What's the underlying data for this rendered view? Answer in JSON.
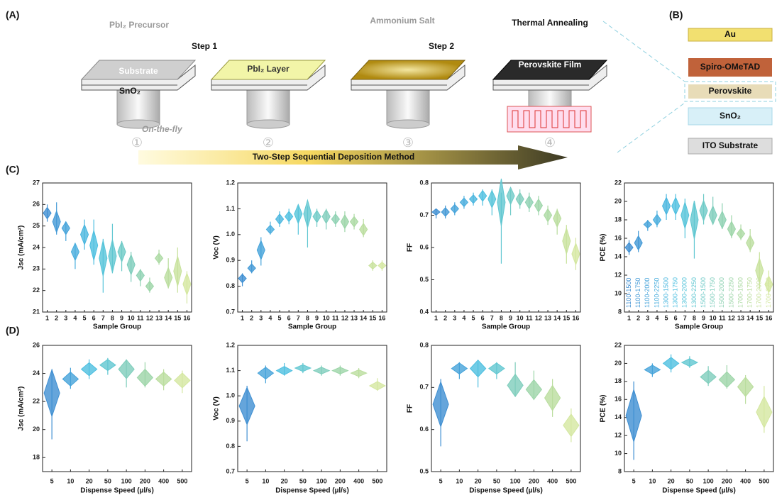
{
  "schematic": {
    "panel_a": "(A)",
    "panel_b": "(B)",
    "precursor": "PbI₂ Precursor",
    "step1": "Step 1",
    "substrate": "Substrate",
    "sno2": "SnO₂",
    "on_the_fly": "On-the-fly",
    "pbi2_layer": "PbI₂ Layer",
    "ammonium": "Ammonium Salt",
    "step2": "Step 2",
    "annealing": "Thermal Annealing",
    "film": "Perovskite Film",
    "method": "Two-Step Sequential Deposition Method",
    "steps": [
      "①",
      "②",
      "③",
      "④"
    ]
  },
  "stack": [
    "Au",
    "Spiro-OMeTAD",
    "Perovskite",
    "SnO₂",
    "ITO Substrate"
  ],
  "panel_c": "(C)",
  "panel_d": "(D)",
  "chart_data": [
    {
      "type": "violin",
      "ylabel": "Jsc (mA/cm²)",
      "xlabel": "Sample Group",
      "categories": [
        "1",
        "2",
        "3",
        "4",
        "5",
        "6",
        "7",
        "8",
        "9",
        "10",
        "11",
        "12",
        "13",
        "14",
        "15",
        "16"
      ],
      "values": [
        25.6,
        25.2,
        24.9,
        23.8,
        24.6,
        24.1,
        23.5,
        23.6,
        23.8,
        23.2,
        22.7,
        22.2,
        23.5,
        22.6,
        22.9,
        22.3
      ],
      "lower": [
        25.2,
        24.6,
        24.3,
        23.0,
        23.9,
        23.2,
        21.9,
        22.8,
        22.9,
        22.4,
        22.2,
        21.9,
        23.2,
        22.1,
        21.9,
        21.4
      ],
      "upper": [
        26.0,
        26.1,
        25.2,
        24.2,
        25.3,
        25.3,
        24.4,
        25.1,
        24.3,
        23.8,
        23.0,
        22.6,
        23.9,
        23.5,
        24.0,
        22.9
      ],
      "colors": [
        "#3f8fd2",
        "#4299d6",
        "#45a3da",
        "#48addd",
        "#4ab6df",
        "#4dbfe0",
        "#55c4da",
        "#60c7d1",
        "#6ecac7",
        "#7ecdbc",
        "#8dd1b2",
        "#9cd5a8",
        "#abd9a2",
        "#badd9e",
        "#c8e29c",
        "#d4e7a0"
      ],
      "ylim": [
        21,
        27
      ],
      "yticks": [
        21,
        22,
        23,
        24,
        25,
        26,
        27
      ]
    },
    {
      "type": "violin",
      "ylabel": "Voc (V)",
      "xlabel": "Sample Group",
      "categories": [
        "1",
        "2",
        "3",
        "4",
        "5",
        "6",
        "7",
        "8",
        "9",
        "10",
        "11",
        "12",
        "13",
        "14",
        "15",
        "16"
      ],
      "values": [
        0.83,
        0.87,
        0.94,
        1.02,
        1.06,
        1.07,
        1.08,
        1.08,
        1.07,
        1.07,
        1.06,
        1.05,
        1.05,
        1.02,
        0.88,
        0.88
      ],
      "lower": [
        0.8,
        0.85,
        0.88,
        1.0,
        1.03,
        1.04,
        1.0,
        0.95,
        1.03,
        1.02,
        1.03,
        1.01,
        1.02,
        0.99,
        0.86,
        0.86
      ],
      "upper": [
        0.85,
        0.9,
        0.99,
        1.05,
        1.09,
        1.1,
        1.11,
        1.11,
        1.1,
        1.1,
        1.09,
        1.09,
        1.08,
        1.06,
        0.9,
        0.9
      ],
      "colors": [
        "#3f8fd2",
        "#4299d6",
        "#45a3da",
        "#48addd",
        "#4ab6df",
        "#4dbfe0",
        "#55c4da",
        "#60c7d1",
        "#6ecac7",
        "#7ecdbc",
        "#8dd1b2",
        "#9cd5a8",
        "#abd9a2",
        "#badd9e",
        "#c8e29c",
        "#d4e7a0"
      ],
      "ylim": [
        0.7,
        1.2
      ],
      "yticks": [
        0.7,
        0.8,
        0.9,
        {
          "value": 1,
          "label": "1.0"
        },
        1.1,
        1.2
      ]
    },
    {
      "type": "violin",
      "ylabel": "FF",
      "xlabel": "Sample Group",
      "categories": [
        "1",
        "2",
        "3",
        "4",
        "5",
        "6",
        "7",
        "8",
        "9",
        "10",
        "11",
        "12",
        "13",
        "14",
        "15",
        "16"
      ],
      "values": [
        0.71,
        0.71,
        0.72,
        0.74,
        0.75,
        0.76,
        0.75,
        0.74,
        0.76,
        0.75,
        0.74,
        0.73,
        0.7,
        0.69,
        0.62,
        0.58
      ],
      "lower": [
        0.69,
        0.69,
        0.7,
        0.72,
        0.73,
        0.73,
        0.7,
        0.55,
        0.7,
        0.72,
        0.71,
        0.7,
        0.67,
        0.64,
        0.55,
        0.53
      ],
      "upper": [
        0.72,
        0.73,
        0.74,
        0.76,
        0.77,
        0.78,
        0.78,
        0.77,
        0.78,
        0.78,
        0.77,
        0.76,
        0.73,
        0.72,
        0.67,
        0.63
      ],
      "colors": [
        "#3f8fd2",
        "#4299d6",
        "#45a3da",
        "#48addd",
        "#4ab6df",
        "#4dbfe0",
        "#55c4da",
        "#60c7d1",
        "#6ecac7",
        "#7ecdbc",
        "#8dd1b2",
        "#9cd5a8",
        "#abd9a2",
        "#badd9e",
        "#c8e29c",
        "#d4e7a0"
      ],
      "ylim": [
        0.4,
        0.8
      ],
      "yticks": [
        0.4,
        0.5,
        0.6,
        0.7,
        0.8
      ]
    },
    {
      "type": "violin",
      "ylabel": "PCE (%)",
      "xlabel": "Sample Group",
      "categories": [
        "1",
        "2",
        "3",
        "4",
        "5",
        "6",
        "7",
        "8",
        "9",
        "10",
        "11",
        "12",
        "13",
        "14",
        "15",
        "16"
      ],
      "values": [
        15,
        15.5,
        17.5,
        18,
        19.5,
        19.5,
        18.5,
        18,
        19,
        18.5,
        18,
        17,
        16.5,
        15.5,
        12.5,
        11
      ],
      "lower": [
        14.2,
        14.5,
        16.8,
        17.2,
        18.0,
        18.0,
        16,
        13.8,
        17.5,
        17.5,
        17,
        16,
        15.8,
        14.5,
        10.5,
        9.8
      ],
      "upper": [
        15.8,
        16.8,
        18.0,
        19.0,
        20.8,
        20.8,
        20.3,
        20.0,
        20.8,
        20.5,
        19.8,
        18.5,
        17.5,
        17,
        14.5,
        12.5
      ],
      "colors": [
        "#3f8fd2",
        "#4299d6",
        "#45a3da",
        "#48addd",
        "#4ab6df",
        "#4dbfe0",
        "#55c4da",
        "#60c7d1",
        "#6ecac7",
        "#7ecdbc",
        "#8dd1b2",
        "#9cd5a8",
        "#abd9a2",
        "#badd9e",
        "#c8e29c",
        "#d4e7a0"
      ],
      "group_labels": [
        "1100-1500",
        "1100-1750",
        "1100-2000",
        "1100-2250",
        "1300-1500",
        "1300-1750",
        "1300-2000",
        "1300-2250",
        "1500-1500",
        "1500-1750",
        "1500-2000",
        "1500-2250",
        "1700-1500",
        "1700-1750",
        "1700-2000",
        "1700-2250"
      ],
      "ylim": [
        8,
        22
      ],
      "yticks": [
        8,
        10,
        12,
        14,
        16,
        18,
        20,
        22
      ]
    },
    {
      "type": "violin",
      "ylabel": "Jsc (mA/cm²)",
      "xlabel": "Dispense Speed (µl/s)",
      "categories": [
        "5",
        "10",
        "20",
        "50",
        "100",
        "200",
        "400",
        "500"
      ],
      "values": [
        22.6,
        23.6,
        24.3,
        24.6,
        24.3,
        23.7,
        23.6,
        23.5
      ],
      "lower": [
        19.3,
        22.9,
        23.6,
        23.9,
        23.0,
        23.0,
        22.8,
        22.6
      ],
      "upper": [
        24.3,
        24.4,
        25.0,
        25.1,
        25.0,
        24.8,
        24.3,
        24.2
      ],
      "colors": [
        "#3f8fd2",
        "#45a3da",
        "#4dbfe0",
        "#60c7d1",
        "#7ecdbc",
        "#9cd5a8",
        "#badd9e",
        "#d4e7a0"
      ],
      "ylim": [
        17,
        26
      ],
      "yticks": [
        18,
        20,
        22,
        24,
        26
      ]
    },
    {
      "type": "violin",
      "ylabel": "Voc (V)",
      "xlabel": "Dispense Speed (µl/s)",
      "categories": [
        "5",
        "10",
        "20",
        "50",
        "100",
        "200",
        "400",
        "500"
      ],
      "values": [
        0.96,
        1.09,
        1.1,
        1.11,
        1.1,
        1.1,
        1.09,
        1.04
      ],
      "lower": [
        0.82,
        1.05,
        1.08,
        1.09,
        1.08,
        1.08,
        1.07,
        1.02
      ],
      "upper": [
        1.04,
        1.12,
        1.13,
        1.13,
        1.12,
        1.12,
        1.11,
        1.07
      ],
      "colors": [
        "#3f8fd2",
        "#45a3da",
        "#4dbfe0",
        "#60c7d1",
        "#7ecdbc",
        "#9cd5a8",
        "#badd9e",
        "#d4e7a0"
      ],
      "ylim": [
        0.7,
        1.2
      ],
      "yticks": [
        0.7,
        0.8,
        0.9,
        {
          "value": 1,
          "label": "1.0"
        },
        1.1,
        1.2
      ]
    },
    {
      "type": "violin",
      "ylabel": "FF",
      "xlabel": "Dispense Speed (µl/s)",
      "categories": [
        "5",
        "10",
        "20",
        "50",
        "100",
        "200",
        "400",
        "500"
      ],
      "values": [
        0.66,
        0.745,
        0.745,
        0.745,
        0.705,
        0.695,
        0.675,
        0.61
      ],
      "lower": [
        0.56,
        0.72,
        0.7,
        0.72,
        0.68,
        0.67,
        0.63,
        0.57
      ],
      "upper": [
        0.72,
        0.76,
        0.76,
        0.76,
        0.76,
        0.74,
        0.72,
        0.65
      ],
      "colors": [
        "#3f8fd2",
        "#45a3da",
        "#4dbfe0",
        "#60c7d1",
        "#7ecdbc",
        "#9cd5a8",
        "#badd9e",
        "#d4e7a0"
      ],
      "ylim": [
        0.5,
        0.8
      ],
      "yticks": [
        0.5,
        0.6,
        0.7,
        0.8
      ]
    },
    {
      "type": "violin",
      "ylabel": "PCE (%)",
      "xlabel": "Dispense Speed (µl/s)",
      "categories": [
        "5",
        "10",
        "20",
        "50",
        "100",
        "200",
        "400",
        "500"
      ],
      "values": [
        14.2,
        19.3,
        20,
        20.1,
        18.5,
        18.2,
        17.4,
        14.6
      ],
      "lower": [
        9.3,
        18.5,
        19.0,
        19.5,
        17.5,
        17.2,
        15.5,
        12.3
      ],
      "upper": [
        18.0,
        20.0,
        21.0,
        20.8,
        19.7,
        19.8,
        18.7,
        17.5
      ],
      "colors": [
        "#3f8fd2",
        "#45a3da",
        "#4dbfe0",
        "#60c7d1",
        "#7ecdbc",
        "#9cd5a8",
        "#badd9e",
        "#d4e7a0"
      ],
      "ylim": [
        8,
        22
      ],
      "yticks": [
        8,
        10,
        12,
        14,
        16,
        18,
        20,
        22
      ]
    }
  ]
}
